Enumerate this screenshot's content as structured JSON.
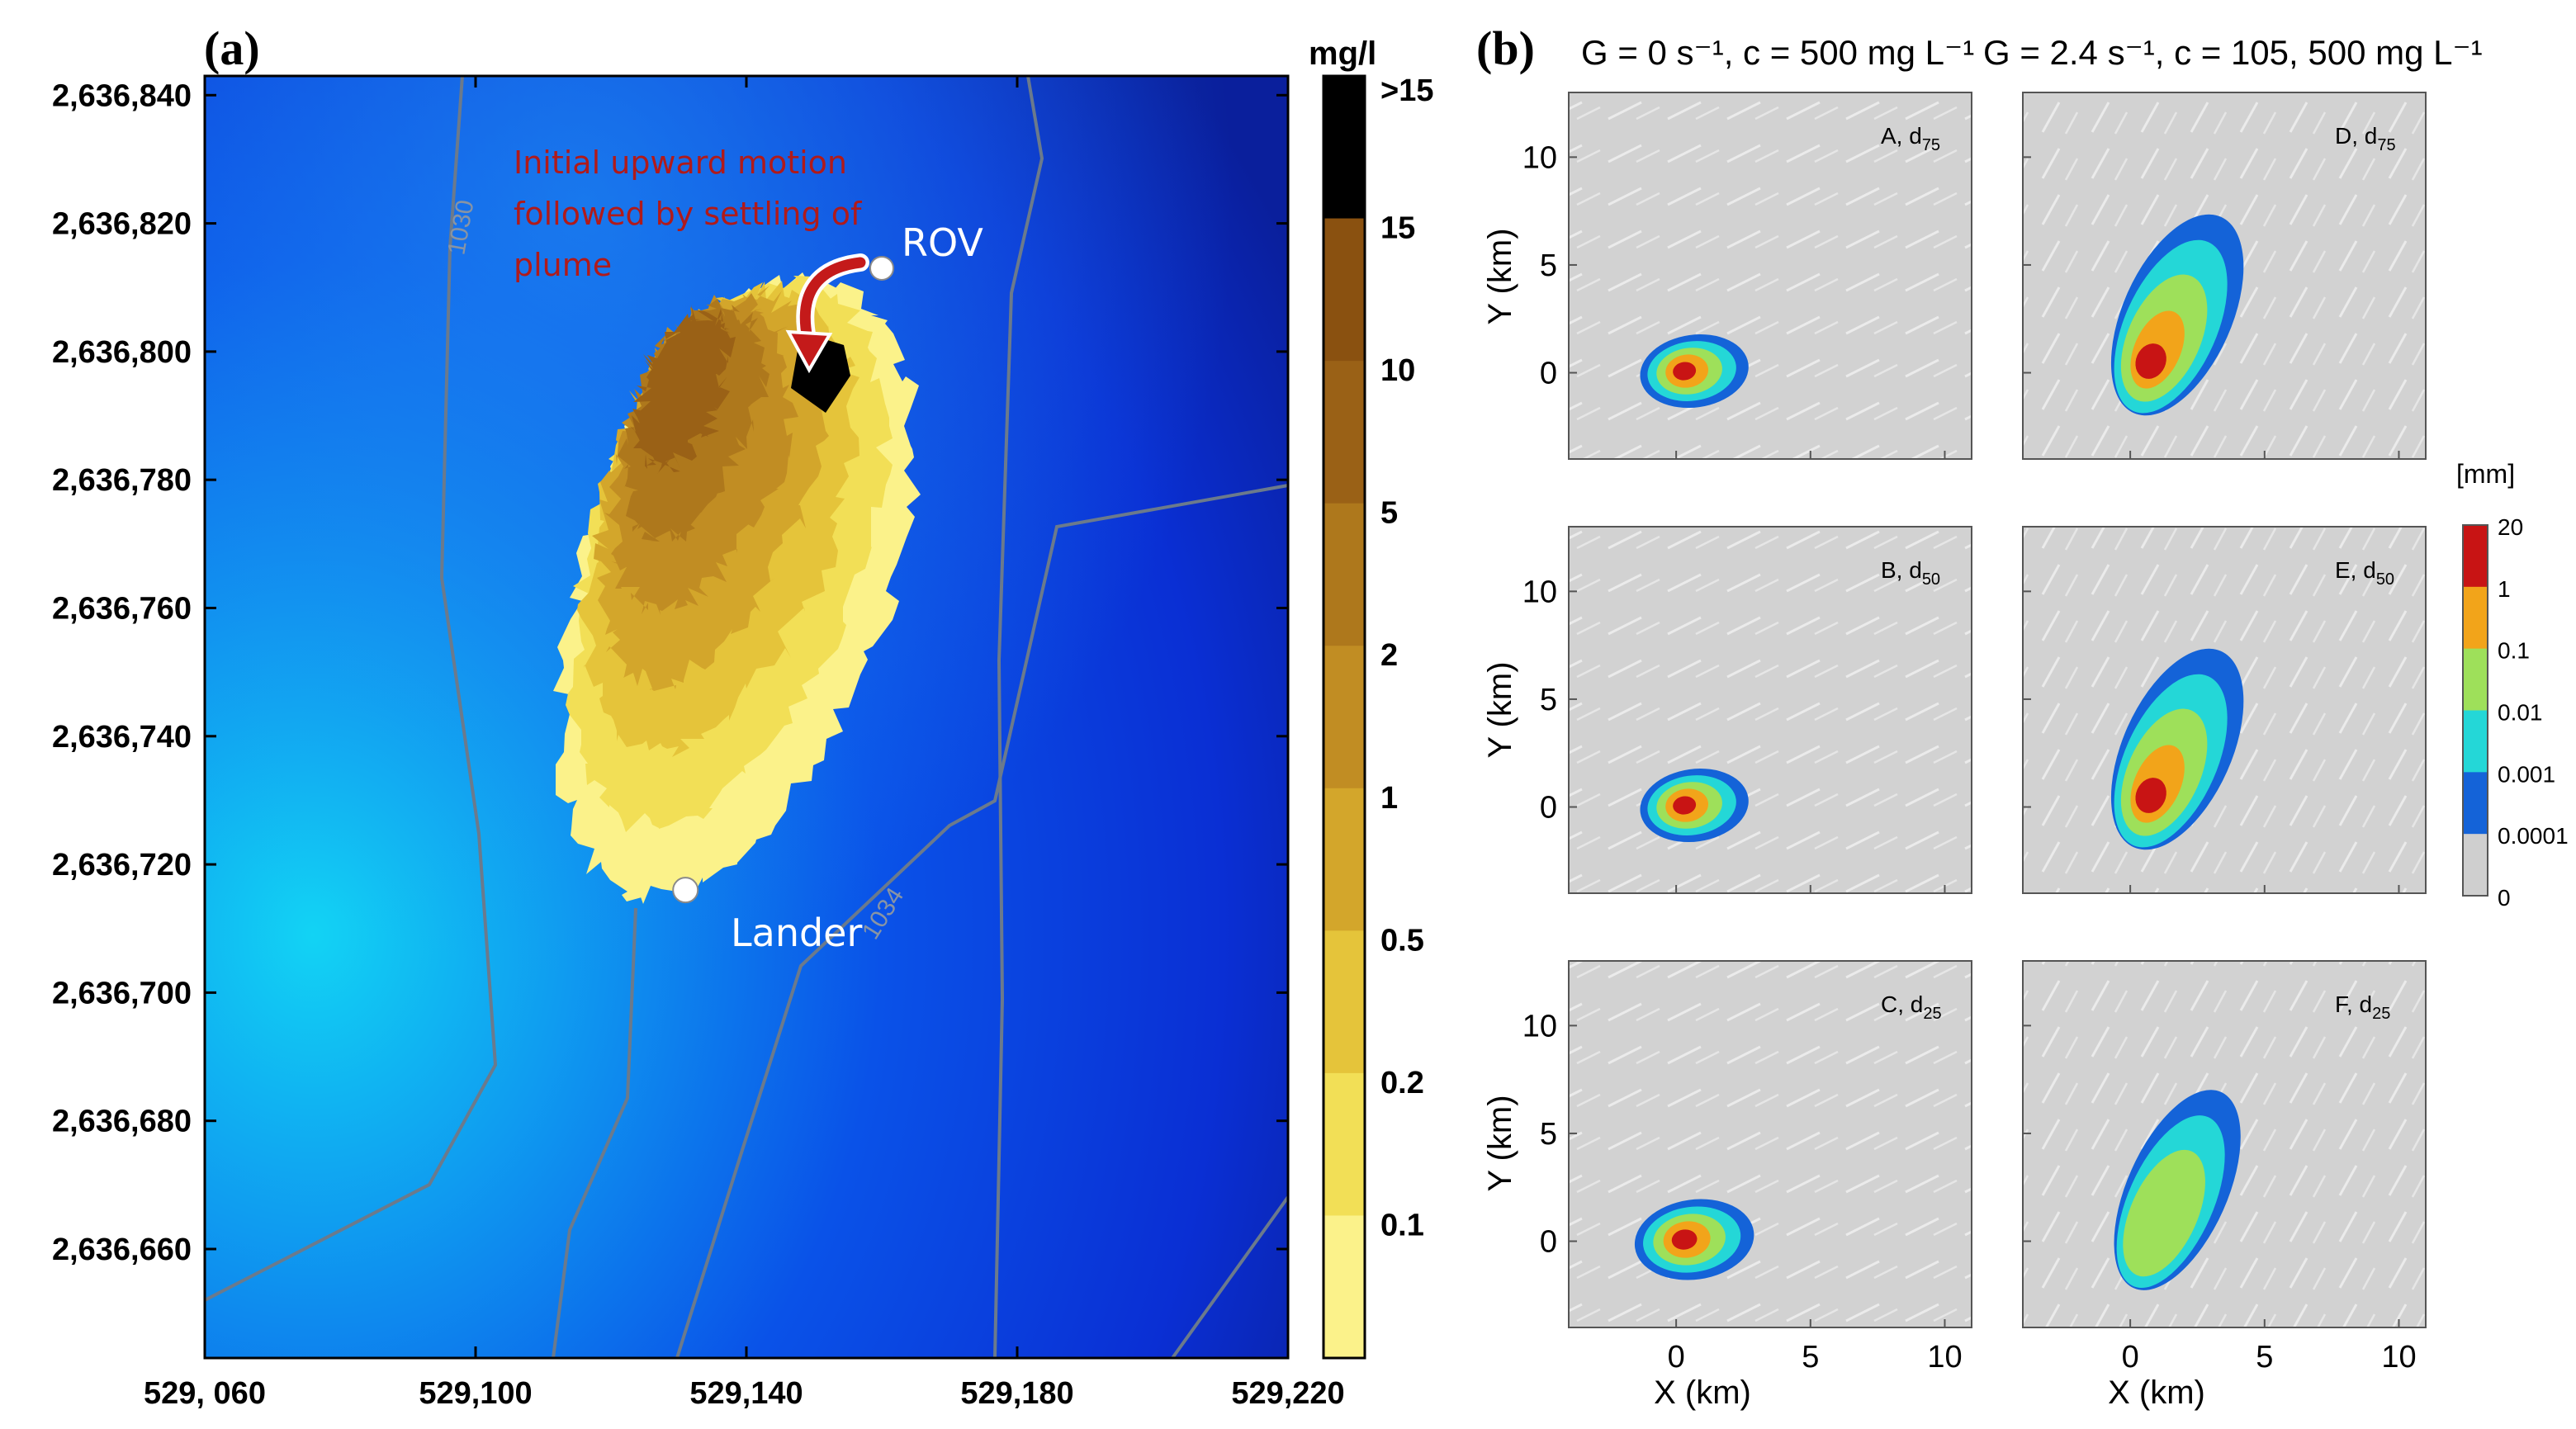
{
  "figure": {
    "label_a": "(a)",
    "label_b": "(b)"
  },
  "chart_data": [
    {
      "type": "heatmap",
      "title": "(a)",
      "units": "mg/l",
      "x_ticks": [
        "529, 060",
        "529,100",
        "529,140",
        "529,180",
        "529,220"
      ],
      "x_values": [
        529060,
        529100,
        529140,
        529180,
        529220
      ],
      "y_ticks": [
        "2,636,840",
        "2,636,820",
        "2,636,800",
        "2,636,780",
        "2,636,760",
        "2,636,740",
        "2,636,720",
        "2,636,700",
        "2,636,680",
        "2,636,660"
      ],
      "y_values": [
        2636840,
        2636820,
        2636800,
        2636780,
        2636760,
        2636740,
        2636720,
        2636700,
        2636680,
        2636660
      ],
      "xlim": [
        529060,
        529220
      ],
      "ylim": [
        2636643,
        2636843
      ],
      "colorbar": {
        "units_label": "mg/l",
        "tick_labels": [
          ">15",
          "15",
          "10",
          "5",
          "2",
          "1",
          "0.5",
          "0.2",
          "0.1"
        ],
        "colors": [
          "#000000",
          "#8a5110",
          "#9a6116",
          "#ae781c",
          "#c18d23",
          "#d3a62b",
          "#e5c43a",
          "#f2df56",
          "#fbf28a"
        ]
      },
      "contours": [
        "1030",
        "1034"
      ],
      "markers": [
        {
          "label": "ROV",
          "x": 529160,
          "y": 2636813
        },
        {
          "label": "Lander",
          "x": 529131,
          "y": 2636716
        }
      ],
      "annotation": {
        "lines": [
          "Initial upward motion",
          "followed by settling of",
          "plume"
        ],
        "color": "#b01a1a"
      }
    },
    {
      "type": "heatmap",
      "title": "(b)",
      "column_titles": [
        "G = 0 s⁻¹, c = 500 mg L⁻¹",
        "G = 2.4 s⁻¹, c = 105, 500 mg L⁻¹"
      ],
      "xlabel": "X (km)",
      "ylabel": "Y (km)",
      "x_ticks": [
        "0",
        "5",
        "10"
      ],
      "x_values": [
        0,
        5,
        10
      ],
      "y_ticks": [
        "10",
        "5",
        "0"
      ],
      "y_values": [
        10,
        5,
        0
      ],
      "xlim": [
        -4,
        11
      ],
      "ylim": [
        -4,
        13
      ],
      "panels": [
        {
          "id": "A",
          "label": "A, d",
          "sub": "75",
          "col": 0,
          "row": 0,
          "levels": [
            0.001,
            0.01,
            0.1,
            1,
            20
          ]
        },
        {
          "id": "B",
          "label": "B, d",
          "sub": "50",
          "col": 0,
          "row": 1,
          "levels": [
            0.001,
            0.01,
            0.1,
            1,
            20
          ]
        },
        {
          "id": "C",
          "label": "C, d",
          "sub": "25",
          "col": 0,
          "row": 2,
          "levels": [
            0.001,
            0.01,
            0.1,
            1,
            20
          ]
        },
        {
          "id": "D",
          "label": "D, d",
          "sub": "75",
          "col": 1,
          "row": 0,
          "levels": [
            0.001,
            0.01,
            0.1,
            1,
            20
          ]
        },
        {
          "id": "E",
          "label": "E, d",
          "sub": "50",
          "col": 1,
          "row": 1,
          "levels": [
            0.001,
            0.01,
            0.1,
            1,
            20
          ]
        },
        {
          "id": "F",
          "label": "F, d",
          "sub": "25",
          "col": 1,
          "row": 2,
          "levels": [
            0.001,
            0.01,
            0.1
          ]
        }
      ],
      "colorbar": {
        "units_label": "[mm]",
        "tick_labels": [
          "20",
          "1",
          "0.1",
          "0.01",
          "0.001",
          "0.0001",
          "0"
        ],
        "colors": [
          "#c81414",
          "#f2a41a",
          "#9ee05a",
          "#24d7d7",
          "#1463d8",
          "#cfcfcf"
        ]
      }
    }
  ]
}
